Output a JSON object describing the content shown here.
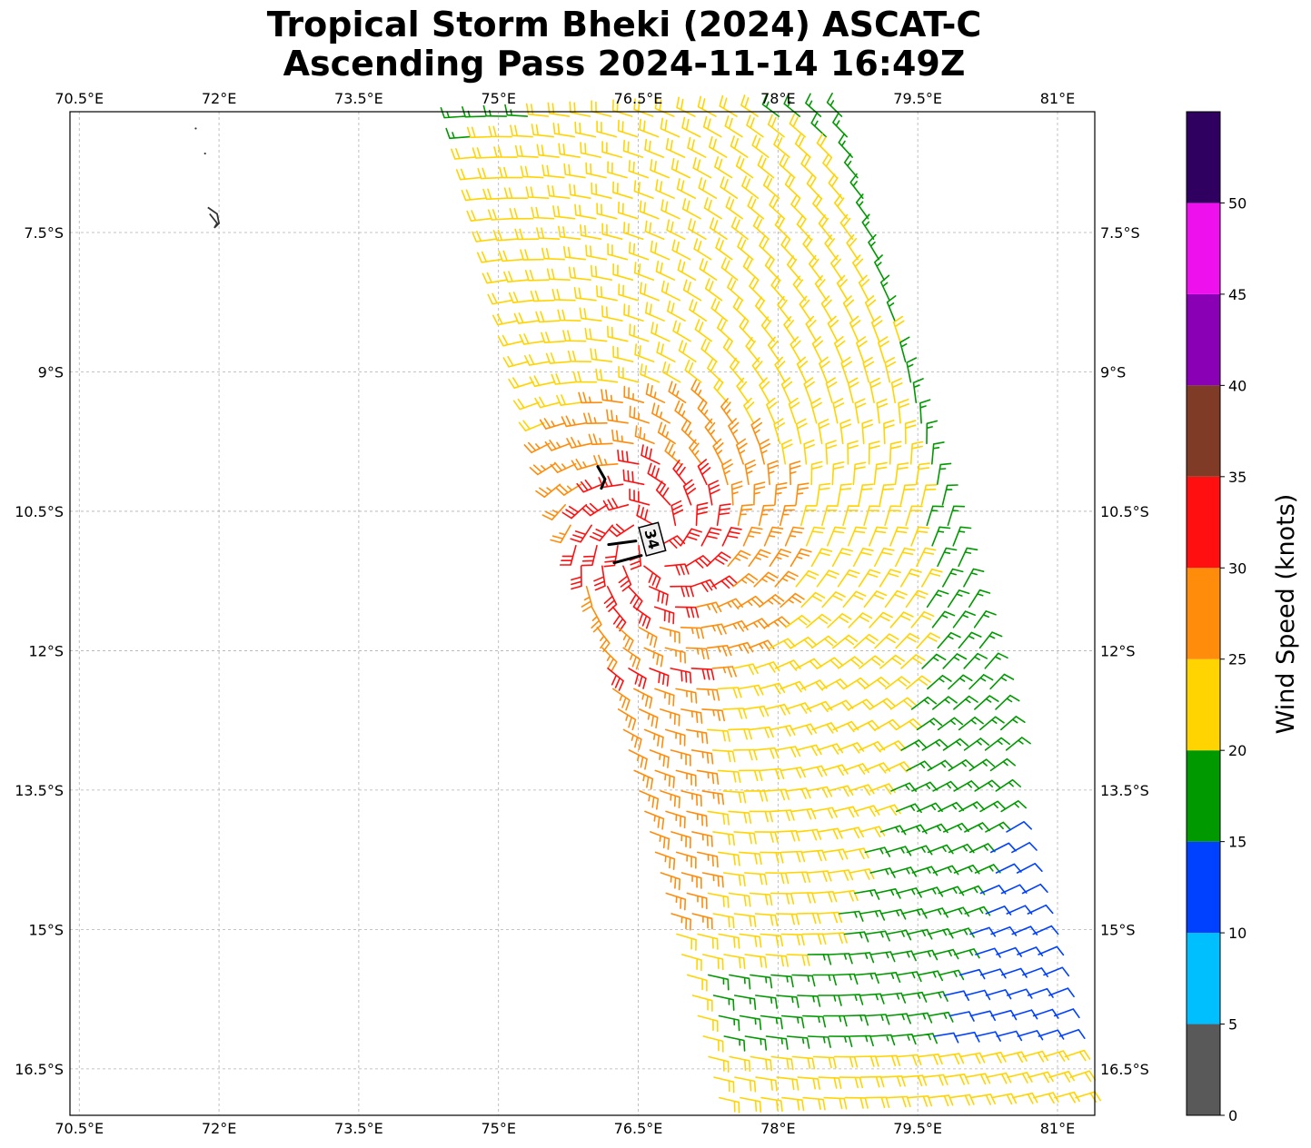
{
  "title": {
    "line1": "Tropical Storm Bheki (2024) ASCAT-C",
    "line2": "Ascending Pass 2024-11-14 16:49Z"
  },
  "map": {
    "lon_range": [
      70.4,
      81.4
    ],
    "lat_range": [
      -6.2,
      -17.0
    ],
    "lon_ticks": [
      {
        "value": 70.5,
        "label": "70.5°E"
      },
      {
        "value": 72.0,
        "label": "72°E"
      },
      {
        "value": 73.5,
        "label": "73.5°E"
      },
      {
        "value": 75.0,
        "label": "75°E"
      },
      {
        "value": 76.5,
        "label": "76.5°E"
      },
      {
        "value": 78.0,
        "label": "78°E"
      },
      {
        "value": 79.5,
        "label": "79.5°E"
      },
      {
        "value": 81.0,
        "label": "81°E"
      }
    ],
    "lat_ticks": [
      {
        "value": -7.5,
        "label": "7.5°S"
      },
      {
        "value": -9.0,
        "label": "9°S"
      },
      {
        "value": -10.5,
        "label": "10.5°S"
      },
      {
        "value": -12.0,
        "label": "12°S"
      },
      {
        "value": -13.5,
        "label": "13.5°S"
      },
      {
        "value": -15.0,
        "label": "15°S"
      },
      {
        "value": -16.5,
        "label": "16.5°S"
      }
    ],
    "storm_center": {
      "lon": 76.65,
      "lat": -10.8,
      "label": "34"
    },
    "swath": {
      "description_free": true,
      "corners": [
        [
          74.5,
          -6.2
        ],
        [
          78.8,
          -6.2
        ],
        [
          81.4,
          -17.0
        ],
        [
          77.3,
          -17.0
        ]
      ]
    },
    "islands": [
      {
        "lon": 71.75,
        "lat": -6.38
      },
      {
        "lon": 71.85,
        "lat": -6.65
      }
    ],
    "island_outline": [
      [
        71.88,
        -7.23
      ],
      [
        71.98,
        -7.3
      ],
      [
        72.0,
        -7.4
      ],
      [
        71.95,
        -7.45
      ],
      [
        71.98,
        -7.4
      ],
      [
        71.9,
        -7.3
      ]
    ]
  },
  "colorbar": {
    "label": "Wind Speed (knots)",
    "ticks": [
      0,
      5,
      10,
      15,
      20,
      25,
      30,
      35,
      40,
      45,
      50
    ],
    "bands": [
      {
        "from": 0,
        "to": 5,
        "color": "#595959"
      },
      {
        "from": 5,
        "to": 10,
        "color": "#00bfff"
      },
      {
        "from": 10,
        "to": 15,
        "color": "#0040ff"
      },
      {
        "from": 15,
        "to": 20,
        "color": "#009900"
      },
      {
        "from": 20,
        "to": 25,
        "color": "#ffd400"
      },
      {
        "from": 25,
        "to": 30,
        "color": "#ff8c0a"
      },
      {
        "from": 30,
        "to": 35,
        "color": "#ff0f0f"
      },
      {
        "from": 35,
        "to": 40,
        "color": "#7f3b26"
      },
      {
        "from": 40,
        "to": 45,
        "color": "#8a00b5"
      },
      {
        "from": 45,
        "to": 50,
        "color": "#ee11ee"
      },
      {
        "from": 50,
        "to": 55,
        "color": "#300060"
      }
    ],
    "max": 55
  }
}
